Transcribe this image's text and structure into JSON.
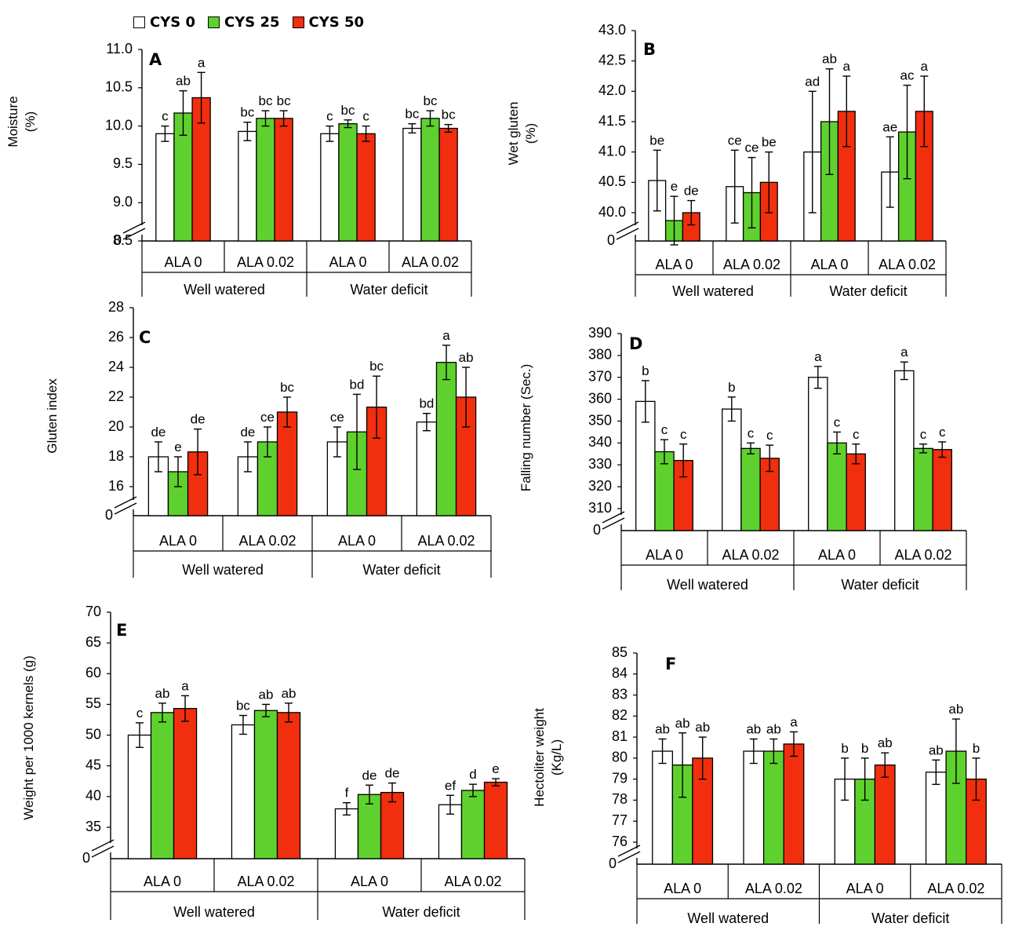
{
  "legend": [
    {
      "name": "CYS 0",
      "color": "#ffffff"
    },
    {
      "name": "CYS 25",
      "color": "#5fd12e"
    },
    {
      "name": "CYS 50",
      "color": "#f12e0e"
    }
  ],
  "chart_data": [
    {
      "panel": "A",
      "type": "bar",
      "ylabel": "Moisture (%)",
      "ylim": [
        8.0,
        11.0
      ],
      "yticks": [
        "11.0",
        "10.5",
        "10.0",
        "9.5",
        "9.0",
        "8.5"
      ],
      "axis_break": true,
      "zero_label": "0",
      "categories": [
        "ALA 0",
        "ALA 0.02",
        "ALA 0",
        "ALA 0.02"
      ],
      "groups": [
        "Well watered",
        "Water deficit"
      ],
      "series": [
        {
          "name": "CYS 0",
          "values": [
            9.9,
            9.93,
            9.9,
            9.97
          ],
          "errors": [
            0.1,
            0.12,
            0.1,
            0.06
          ],
          "letters": [
            "c",
            "bc",
            "c",
            "bc"
          ]
        },
        {
          "name": "CYS 25",
          "values": [
            10.17,
            10.1,
            10.03,
            10.1
          ],
          "errors": [
            0.29,
            0.1,
            0.05,
            0.1
          ],
          "letters": [
            "ab",
            "bc",
            "bc",
            "bc"
          ]
        },
        {
          "name": "CYS 50",
          "values": [
            10.37,
            10.1,
            9.9,
            9.97
          ],
          "errors": [
            0.33,
            0.1,
            0.1,
            0.05
          ],
          "letters": [
            "a",
            "bc",
            "c",
            "bc"
          ]
        }
      ]
    },
    {
      "panel": "B",
      "type": "bar",
      "ylabel": "Wet gluten (%)",
      "ylim": [
        39.6,
        43.0
      ],
      "yticks": [
        "43.0",
        "42.5",
        "42.0",
        "41.5",
        "41.0",
        "40.5",
        "40.0"
      ],
      "axis_break": true,
      "zero_label": "0",
      "categories": [
        "ALA 0",
        "ALA 0.02",
        "ALA 0",
        "ALA 0.02"
      ],
      "groups": [
        "Well watered",
        "Water deficit"
      ],
      "series": [
        {
          "name": "CYS 0",
          "values": [
            40.53,
            40.43,
            41.0,
            40.67
          ],
          "errors": [
            0.5,
            0.6,
            1.0,
            0.58
          ],
          "letters": [
            "be",
            "ce",
            "ad",
            "ae"
          ]
        },
        {
          "name": "CYS 25",
          "values": [
            39.87,
            40.33,
            41.5,
            41.33
          ],
          "errors": [
            0.4,
            0.58,
            0.87,
            0.77
          ],
          "letters": [
            "e",
            "ce",
            "ab",
            "ac"
          ]
        },
        {
          "name": "CYS 50",
          "values": [
            40.0,
            40.5,
            41.67,
            41.67
          ],
          "errors": [
            0.2,
            0.5,
            0.58,
            0.58
          ],
          "letters": [
            "de",
            "be",
            "a",
            "a"
          ]
        }
      ]
    },
    {
      "panel": "C",
      "type": "bar",
      "ylabel": "Gluten index",
      "ylim": [
        15.0,
        28.0
      ],
      "yticks": [
        "28",
        "26",
        "24",
        "22",
        "20",
        "18",
        "16"
      ],
      "axis_break": true,
      "zero_label": "0",
      "categories": [
        "ALA 0",
        "ALA 0.02",
        "ALA 0",
        "ALA 0.02"
      ],
      "groups": [
        "Well watered",
        "Water deficit"
      ],
      "series": [
        {
          "name": "CYS 0",
          "values": [
            18.0,
            18.0,
            19.0,
            20.33
          ],
          "errors": [
            1.0,
            1.0,
            1.0,
            0.58
          ],
          "letters": [
            "de",
            "de",
            "ce",
            "bd"
          ]
        },
        {
          "name": "CYS 25",
          "values": [
            17.0,
            19.0,
            19.67,
            24.33
          ],
          "errors": [
            1.0,
            1.0,
            2.52,
            1.15
          ],
          "letters": [
            "e",
            "ce",
            "bd",
            "a"
          ]
        },
        {
          "name": "CYS 50",
          "values": [
            18.33,
            21.0,
            21.33,
            22.0
          ],
          "errors": [
            1.53,
            1.0,
            2.08,
            2.0
          ],
          "letters": [
            "de",
            "bc",
            "bc",
            "ab"
          ]
        }
      ]
    },
    {
      "panel": "D",
      "type": "bar",
      "ylabel": "Falling number (Sec.)",
      "ylim": [
        305,
        390
      ],
      "yticks": [
        "390",
        "380",
        "370",
        "360",
        "350",
        "340",
        "330",
        "320",
        "310"
      ],
      "axis_break": true,
      "zero_label": "0",
      "categories": [
        "ALA 0",
        "ALA 0.02",
        "ALA 0",
        "ALA 0.02"
      ],
      "groups": [
        "Well watered",
        "Water deficit"
      ],
      "series": [
        {
          "name": "CYS 0",
          "values": [
            359,
            355.5,
            370,
            373
          ],
          "errors": [
            9.5,
            5.5,
            5.0,
            4.0
          ],
          "letters": [
            "b",
            "b",
            "a",
            "a"
          ]
        },
        {
          "name": "CYS 25",
          "values": [
            336,
            337.5,
            340,
            337.5
          ],
          "errors": [
            5.5,
            2.5,
            5.0,
            2.0
          ],
          "letters": [
            "c",
            "c",
            "c",
            "c"
          ]
        },
        {
          "name": "CYS 50",
          "values": [
            332,
            333,
            335,
            337
          ],
          "errors": [
            7.5,
            6.0,
            4.5,
            3.5
          ],
          "letters": [
            "c",
            "c",
            "c",
            "c"
          ]
        }
      ]
    },
    {
      "panel": "E",
      "type": "bar",
      "ylabel": "Weight per 1000 kernels (g)",
      "ylim": [
        32.5,
        70
      ],
      "yticks": [
        "70",
        "65",
        "60",
        "55",
        "50",
        "45",
        "40",
        "35"
      ],
      "axis_break": true,
      "zero_label": "0",
      "categories": [
        "ALA 0",
        "ALA 0.02",
        "ALA 0",
        "ALA 0.02"
      ],
      "groups": [
        "Well watered",
        "Water deficit"
      ],
      "series": [
        {
          "name": "CYS 0",
          "values": [
            50.0,
            51.67,
            38.0,
            38.67
          ],
          "errors": [
            2.0,
            1.53,
            1.0,
            1.53
          ],
          "letters": [
            "c",
            "bc",
            "f",
            "ef"
          ]
        },
        {
          "name": "CYS 25",
          "values": [
            53.67,
            54.0,
            40.33,
            41.0
          ],
          "errors": [
            1.53,
            1.0,
            1.53,
            1.0
          ],
          "letters": [
            "ab",
            "ab",
            "de",
            "d"
          ]
        },
        {
          "name": "CYS 50",
          "values": [
            54.33,
            53.67,
            40.67,
            42.33
          ],
          "errors": [
            2.08,
            1.53,
            1.53,
            0.58
          ],
          "letters": [
            "a",
            "ab",
            "de",
            "e"
          ]
        }
      ]
    },
    {
      "panel": "F",
      "type": "bar",
      "ylabel": "Hectoliter weight (Kg/L)",
      "ylim": [
        75.4,
        85.0
      ],
      "yticks": [
        "85",
        "84",
        "83",
        "82",
        "81",
        "80",
        "79",
        "78",
        "77",
        "76"
      ],
      "axis_break": true,
      "zero_label": "0",
      "categories": [
        "ALA 0",
        "ALA 0.02",
        "ALA 0",
        "ALA 0.02"
      ],
      "groups": [
        "Well watered",
        "Water deficit"
      ],
      "series": [
        {
          "name": "CYS 0",
          "values": [
            80.33,
            80.33,
            79.0,
            79.33
          ],
          "errors": [
            0.58,
            0.58,
            1.0,
            0.58
          ],
          "letters": [
            "ab",
            "ab",
            "b",
            "ab"
          ]
        },
        {
          "name": "CYS 25",
          "values": [
            79.67,
            80.33,
            79.0,
            80.33
          ],
          "errors": [
            1.53,
            0.58,
            1.0,
            1.53
          ],
          "letters": [
            "ab",
            "ab",
            "b",
            "ab"
          ]
        },
        {
          "name": "CYS 50",
          "values": [
            80.0,
            80.67,
            79.67,
            79.0
          ],
          "errors": [
            1.0,
            0.58,
            0.58,
            1.0
          ],
          "letters": [
            "ab",
            "a",
            "ab",
            "b"
          ]
        }
      ]
    }
  ]
}
